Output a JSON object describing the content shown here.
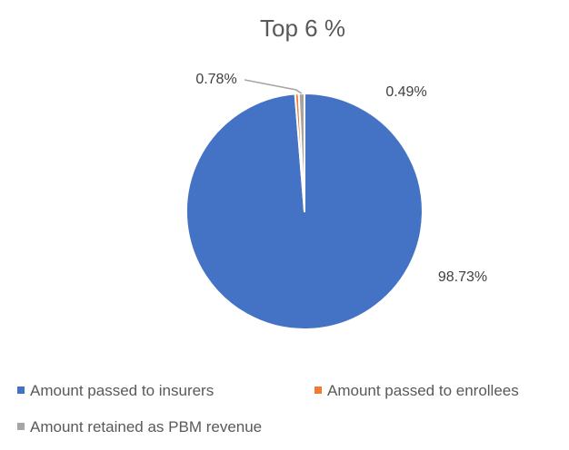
{
  "chart_data": {
    "type": "pie",
    "title": "Top 6 %",
    "labels": [
      "Amount passed to insurers",
      "Amount passed to enrollees",
      "Amount retained as PBM revenue"
    ],
    "values": [
      98.73,
      0.49,
      0.78
    ],
    "data_labels": [
      "98.73%",
      "0.49%",
      "0.78%"
    ],
    "colors": [
      "#4472C4",
      "#ED7D31",
      "#A5A5A5"
    ],
    "legend_position": "bottom",
    "start_angle_deg": 0,
    "direction": "clockwise"
  }
}
